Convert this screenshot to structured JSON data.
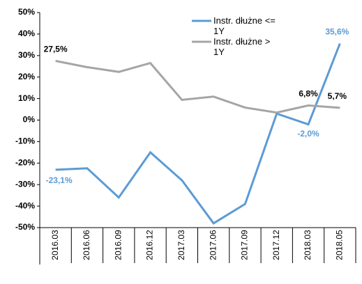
{
  "chart_data": {
    "type": "line",
    "categories": [
      "2016.03",
      "2016.06",
      "2016.09",
      "2016.12",
      "2017.03",
      "2017.06",
      "2017.09",
      "2017.12",
      "2018.03",
      "2018.05"
    ],
    "series": [
      {
        "name": "Instr. dłużne <= 1Y",
        "color": "#5b9bd5",
        "values": [
          -23.1,
          -22.4,
          -36,
          -15,
          -28,
          -48,
          -39,
          3,
          -2.0,
          35.6
        ],
        "value_labels": [
          "-23,1%",
          null,
          null,
          null,
          null,
          null,
          null,
          null,
          "-2,0%",
          "35,6%"
        ]
      },
      {
        "name": "Instr. dłużne > 1Y",
        "color": "#a5a5a5",
        "values": [
          27.5,
          24.6,
          22.4,
          26.5,
          9.4,
          10.9,
          5.8,
          3.5,
          6.8,
          5.7
        ],
        "value_labels": [
          "27,5%",
          null,
          null,
          null,
          null,
          null,
          null,
          null,
          "6,8%",
          "5,7%"
        ]
      }
    ],
    "ylim": [
      -50,
      50
    ],
    "yticks": [
      {
        "value": -50,
        "label": "-50%"
      },
      {
        "value": -40,
        "label": "-40%"
      },
      {
        "value": -30,
        "label": "-30%"
      },
      {
        "value": -20,
        "label": "-20%"
      },
      {
        "value": -10,
        "label": "-10%"
      },
      {
        "value": 0,
        "label": "0%"
      },
      {
        "value": 10,
        "label": "10%"
      },
      {
        "value": 20,
        "label": "20%"
      },
      {
        "value": 30,
        "label": "30%"
      },
      {
        "value": 40,
        "label": "40%"
      },
      {
        "value": 50,
        "label": "50%"
      }
    ],
    "grid": false,
    "legend": "top-right"
  }
}
